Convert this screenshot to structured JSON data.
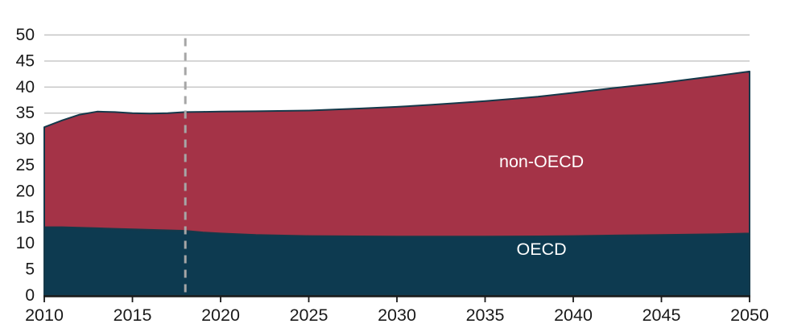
{
  "chart_data": {
    "type": "area",
    "stacked": true,
    "title": "",
    "xlabel": "",
    "ylabel": "",
    "x": [
      2010,
      2011,
      2012,
      2013,
      2014,
      2015,
      2016,
      2017,
      2018,
      2019,
      2020,
      2022,
      2025,
      2028,
      2030,
      2032,
      2035,
      2038,
      2040,
      2042,
      2045,
      2048,
      2050
    ],
    "series": [
      {
        "name": "OECD",
        "values": [
          13.1,
          13.1,
          13.0,
          12.9,
          12.8,
          12.7,
          12.6,
          12.5,
          12.4,
          12.1,
          11.9,
          11.6,
          11.4,
          11.35,
          11.3,
          11.3,
          11.3,
          11.35,
          11.4,
          11.5,
          11.6,
          11.75,
          11.9
        ],
        "fill": "#0d3a50"
      },
      {
        "name": "non-OECD",
        "values": [
          19.2,
          20.5,
          21.7,
          22.4,
          22.4,
          22.3,
          22.3,
          22.5,
          22.8,
          23.15,
          23.4,
          23.75,
          24.1,
          24.55,
          24.9,
          25.3,
          26.0,
          26.8,
          27.5,
          28.2,
          29.2,
          30.35,
          31.1
        ],
        "fill": "#a43347"
      }
    ],
    "series_labels": [
      {
        "text": "non-OECD",
        "year": 2038.2,
        "value": 25.7,
        "color": "#ffffff"
      },
      {
        "text": "OECD",
        "year": 2038.2,
        "value": 8.9,
        "color": "#ffffff"
      }
    ],
    "xlim": [
      2010,
      2050
    ],
    "ylim": [
      0,
      50
    ],
    "xticks": [
      "2010",
      "2015",
      "2020",
      "2025",
      "2030",
      "2035",
      "2040",
      "2045",
      "2050"
    ],
    "yticks": [
      "0",
      "5",
      "10",
      "15",
      "20",
      "25",
      "30",
      "35",
      "40",
      "45",
      "50"
    ],
    "grid": "horizontal",
    "legend_position": "in-plot-labels",
    "annotations": [
      {
        "type": "vline",
        "x": 2018,
        "style": "dashed",
        "color": "#a6a6a6"
      }
    ],
    "colors": {
      "background": "#ffffff",
      "gridline": "#c4c4c4",
      "axis_line": "#1a1a1a",
      "tick_label": "#1a1a1a",
      "area_edge": "#15394a"
    }
  }
}
